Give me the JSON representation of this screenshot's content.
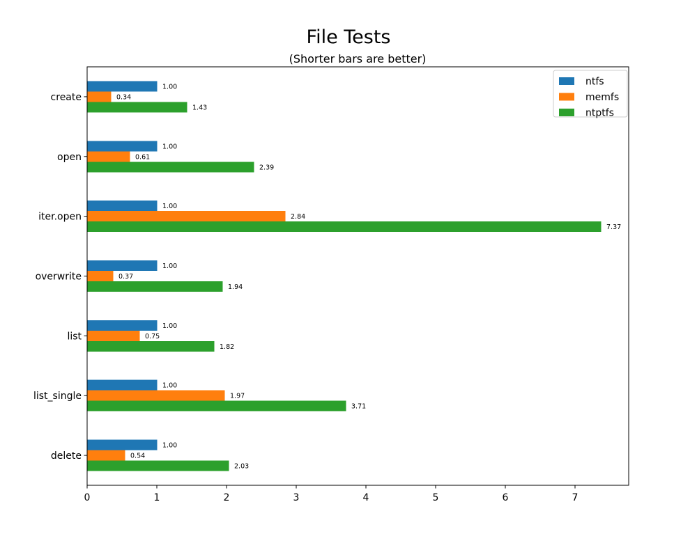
{
  "figure": {
    "background": "#ffffff"
  },
  "chart_data": {
    "type": "bar",
    "orientation": "horizontal",
    "title": "File Tests",
    "subtitle": "(Shorter bars are better)",
    "categories": [
      "create",
      "open",
      "iter.open",
      "overwrite",
      "list",
      "list_single",
      "delete"
    ],
    "series": [
      {
        "name": "ntfs",
        "color": "#1f77b4",
        "values": [
          1.0,
          1.0,
          1.0,
          1.0,
          1.0,
          1.0,
          1.0
        ],
        "labels": [
          "1.00",
          "1.00",
          "1.00",
          "1.00",
          "1.00",
          "1.00",
          "1.00"
        ]
      },
      {
        "name": "memfs",
        "color": "#ff7f0e",
        "values": [
          0.34,
          0.61,
          2.84,
          0.37,
          0.75,
          1.97,
          0.54
        ],
        "labels": [
          "0.34",
          "0.61",
          "2.84",
          "0.37",
          "0.75",
          "1.97",
          "0.54"
        ]
      },
      {
        "name": "ntptfs",
        "color": "#2ca02c",
        "values": [
          1.43,
          2.39,
          7.37,
          1.94,
          1.82,
          3.71,
          2.03
        ],
        "labels": [
          "1.43",
          "2.39",
          "7.37",
          "1.94",
          "1.82",
          "3.71",
          "2.03"
        ]
      }
    ],
    "x_ticks": [
      0,
      1,
      2,
      3,
      4,
      5,
      6,
      7
    ],
    "xlim": [
      0,
      7.77
    ],
    "grid": false,
    "legend": {
      "position": "upper right",
      "entries": [
        "ntfs",
        "memfs",
        "ntptfs"
      ],
      "frame_color": "#cccccc"
    },
    "axis_color": "#000000"
  }
}
